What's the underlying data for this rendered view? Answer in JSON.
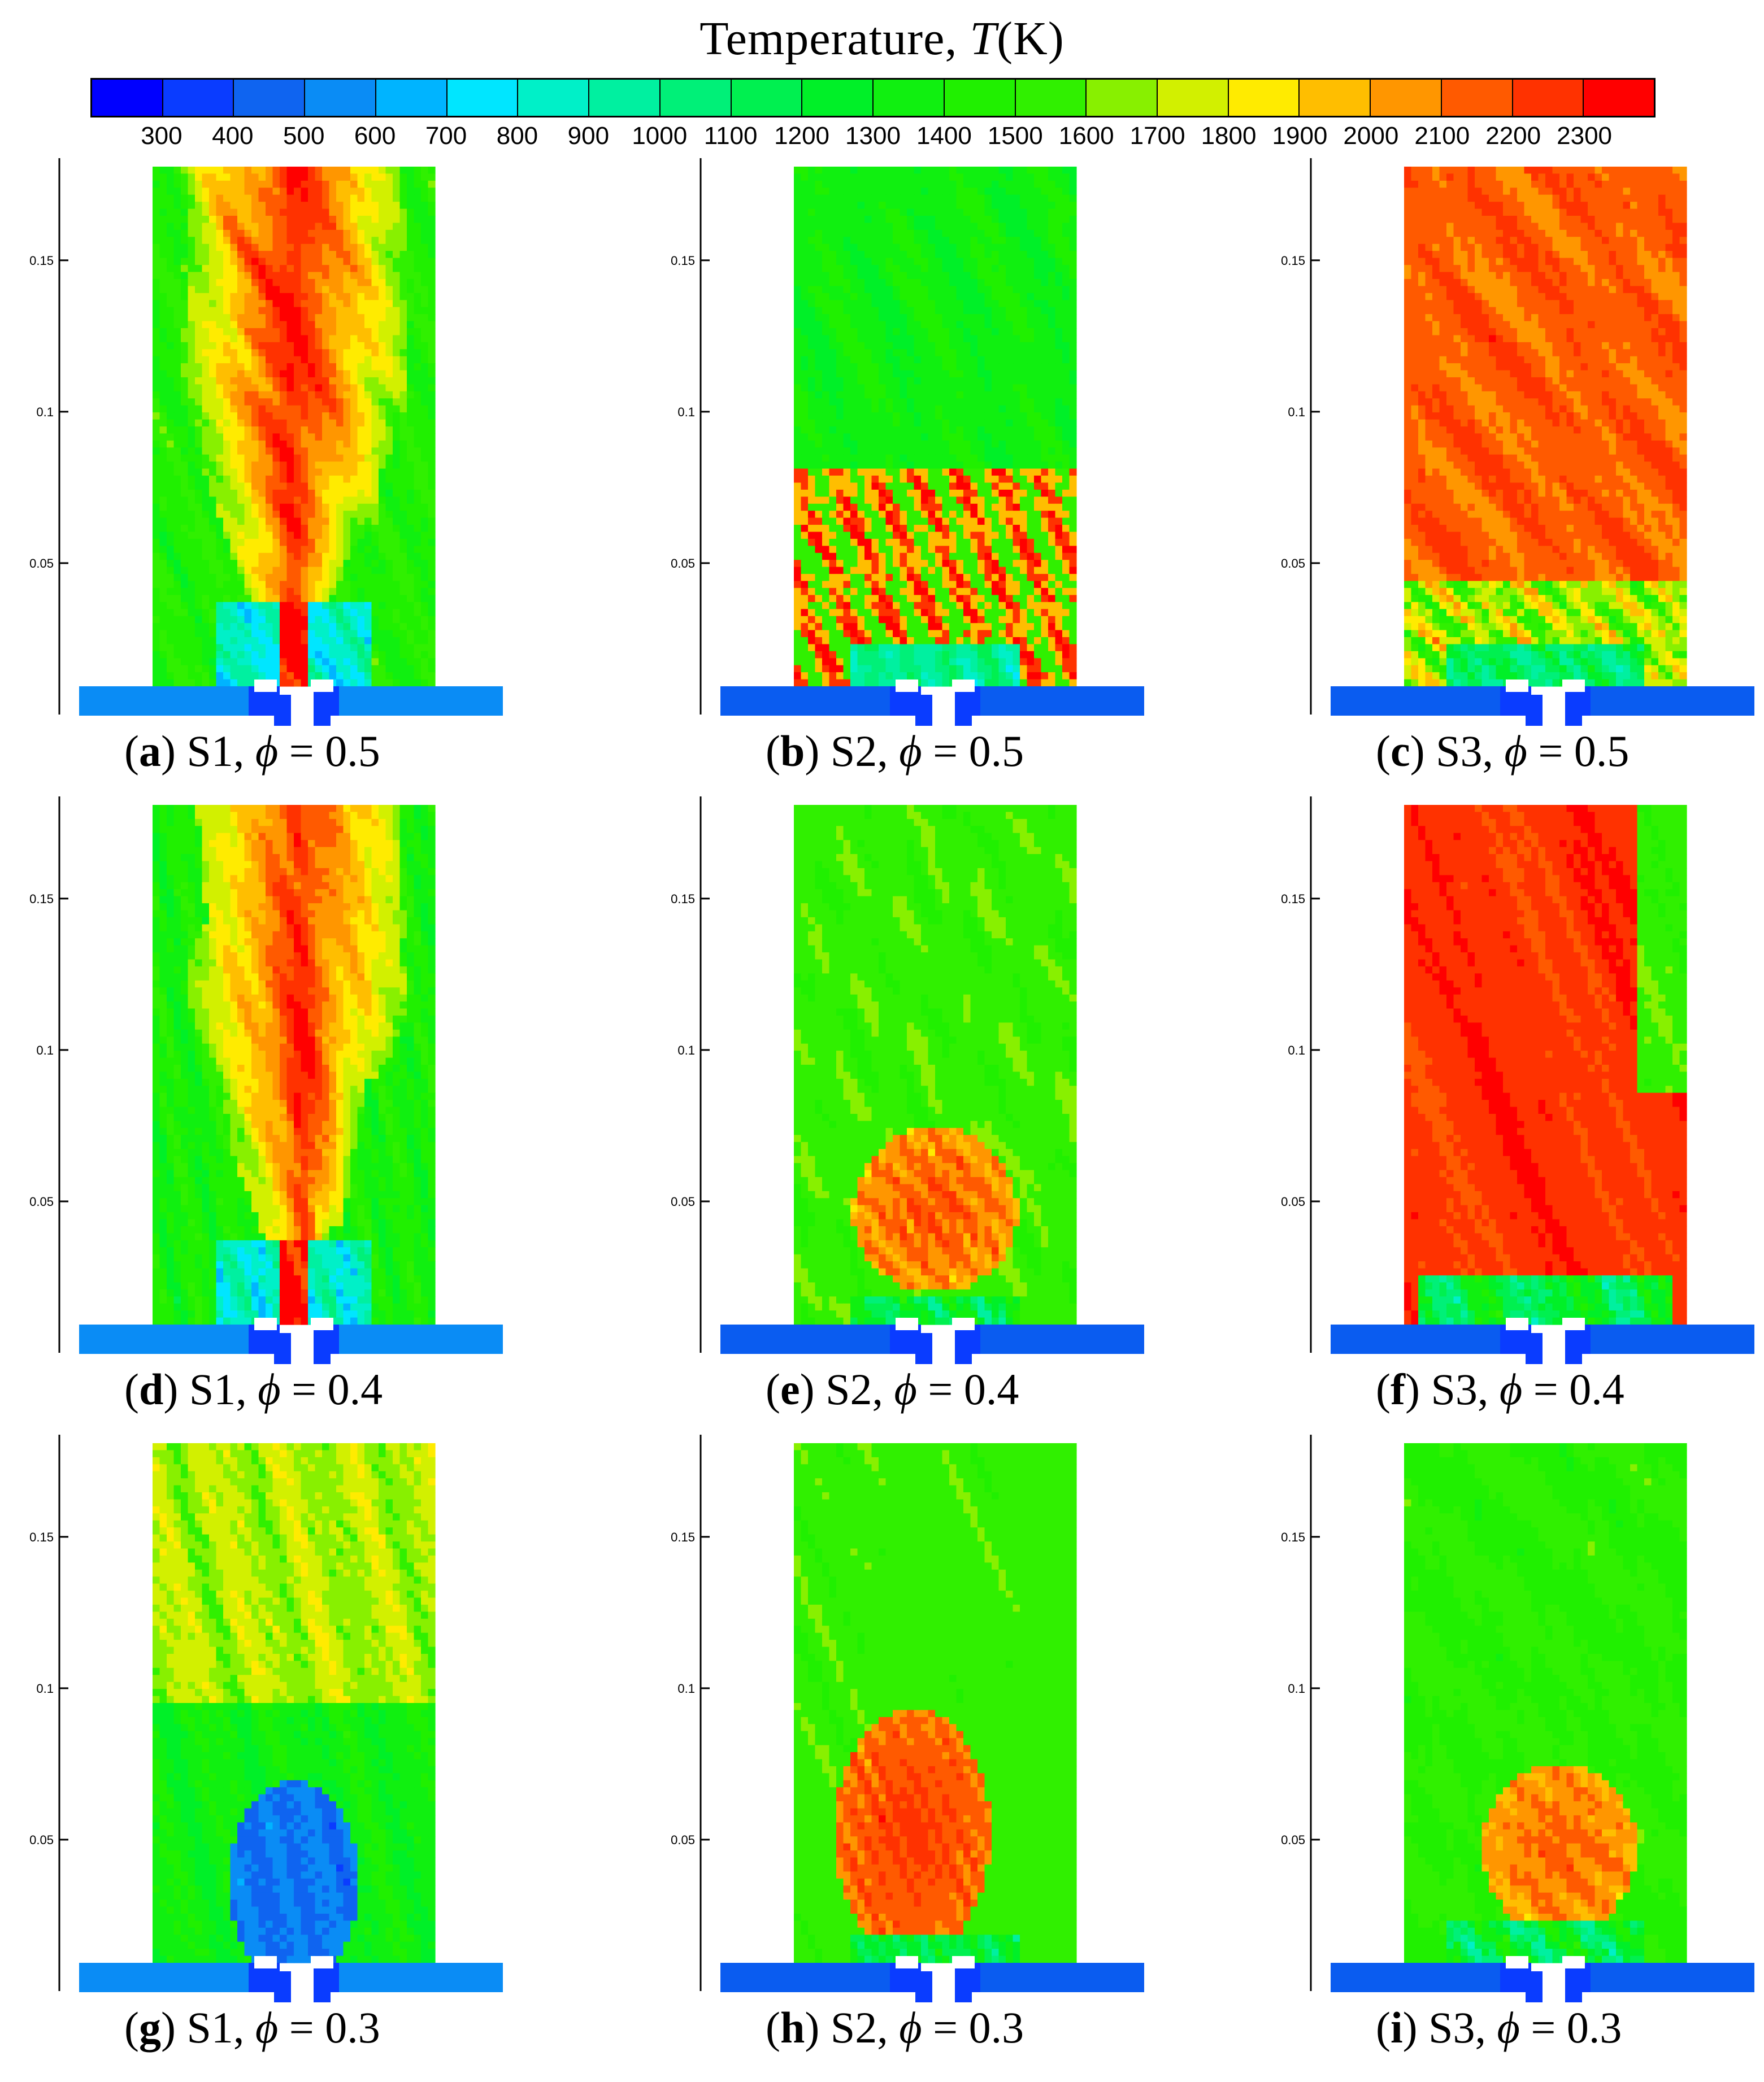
{
  "colorbar": {
    "title_prefix": "Temperature, ",
    "title_var": "T",
    "title_unit": "(K)",
    "ticks": [
      "300",
      "400",
      "500",
      "600",
      "700",
      "800",
      "900",
      "1000",
      "1100",
      "1200",
      "1300",
      "1400",
      "1500",
      "1600",
      "1700",
      "1800",
      "1900",
      "2000",
      "2100",
      "2200",
      "2300"
    ],
    "colors": [
      "#0000ff",
      "#0a3cff",
      "#0f64f0",
      "#0a8cf5",
      "#00b4ff",
      "#00e6ff",
      "#00f0c8",
      "#00f0a0",
      "#00f078",
      "#00f050",
      "#00f028",
      "#10f010",
      "#20f000",
      "#30f000",
      "#88f000",
      "#d2f000",
      "#ffeb00",
      "#ffbe00",
      "#ff9600",
      "#ff5a00",
      "#ff3200",
      "#ff0000"
    ]
  },
  "chart_data": [
    {
      "type": "heatmap",
      "panel": "a",
      "case": "S1",
      "phi": "0.5",
      "yticks": [
        "0.15",
        "0.1",
        "0.05"
      ],
      "ylim": [
        0,
        0.18
      ],
      "peak_temperature_K": 2300,
      "flame_height_m": 0.17
    },
    {
      "type": "heatmap",
      "panel": "b",
      "case": "S2",
      "phi": "0.5",
      "yticks": [
        "0.15",
        "0.1",
        "0.05"
      ],
      "ylim": [
        0,
        0.18
      ],
      "peak_temperature_K": 2300,
      "flame_height_m": 0.09
    },
    {
      "type": "heatmap",
      "panel": "c",
      "case": "S3",
      "phi": "0.5",
      "yticks": [
        "0.15",
        "0.1",
        "0.05"
      ],
      "ylim": [
        0,
        0.18
      ],
      "peak_temperature_K": 2300,
      "flame_height_m": 0.18
    },
    {
      "type": "heatmap",
      "panel": "d",
      "case": "S1",
      "phi": "0.4",
      "yticks": [
        "0.15",
        "0.1",
        "0.05"
      ],
      "ylim": [
        0,
        0.18
      ],
      "peak_temperature_K": 2300,
      "flame_height_m": 0.17
    },
    {
      "type": "heatmap",
      "panel": "e",
      "case": "S2",
      "phi": "0.4",
      "yticks": [
        "0.15",
        "0.1",
        "0.05"
      ],
      "ylim": [
        0,
        0.18
      ],
      "peak_temperature_K": 2200,
      "flame_height_m": 0.07
    },
    {
      "type": "heatmap",
      "panel": "f",
      "case": "S3",
      "phi": "0.4",
      "yticks": [
        "0.15",
        "0.1",
        "0.05"
      ],
      "ylim": [
        0,
        0.18
      ],
      "peak_temperature_K": 2300,
      "flame_height_m": 0.18
    },
    {
      "type": "heatmap",
      "panel": "g",
      "case": "S1",
      "phi": "0.3",
      "yticks": [
        "0.15",
        "0.1",
        "0.05"
      ],
      "ylim": [
        0,
        0.18
      ],
      "peak_temperature_K": 2000,
      "flame_height_m": 0.18
    },
    {
      "type": "heatmap",
      "panel": "h",
      "case": "S2",
      "phi": "0.3",
      "yticks": [
        "0.15",
        "0.1",
        "0.05"
      ],
      "ylim": [
        0,
        0.18
      ],
      "peak_temperature_K": 2300,
      "flame_height_m": 0.11
    },
    {
      "type": "heatmap",
      "panel": "i",
      "case": "S3",
      "phi": "0.3",
      "yticks": [
        "0.15",
        "0.1",
        "0.05"
      ],
      "ylim": [
        0,
        0.18
      ],
      "peak_temperature_K": 2300,
      "flame_height_m": 0.09
    }
  ],
  "captions": [
    {
      "letter": "a",
      "rest": " S1, ",
      "phi": "ϕ",
      "eq": " = 0.5"
    },
    {
      "letter": "b",
      "rest": " S2, ",
      "phi": "ϕ",
      "eq": " = 0.5"
    },
    {
      "letter": "c",
      "rest": " S3, ",
      "phi": "ϕ",
      "eq": " = 0.5"
    },
    {
      "letter": "d",
      "rest": " S1, ",
      "phi": "ϕ",
      "eq": " = 0.4"
    },
    {
      "letter": "e",
      "rest": " S2, ",
      "phi": "ϕ",
      "eq": " = 0.4"
    },
    {
      "letter": "f",
      "rest": " S3, ",
      "phi": "ϕ",
      "eq": " = 0.4"
    },
    {
      "letter": "g",
      "rest": " S1, ",
      "phi": "ϕ",
      "eq": " = 0.3"
    },
    {
      "letter": "h",
      "rest": " S2, ",
      "phi": "ϕ",
      "eq": " = 0.3"
    },
    {
      "letter": "i",
      "rest": " S3, ",
      "phi": "ϕ",
      "eq": " = 0.3"
    }
  ]
}
